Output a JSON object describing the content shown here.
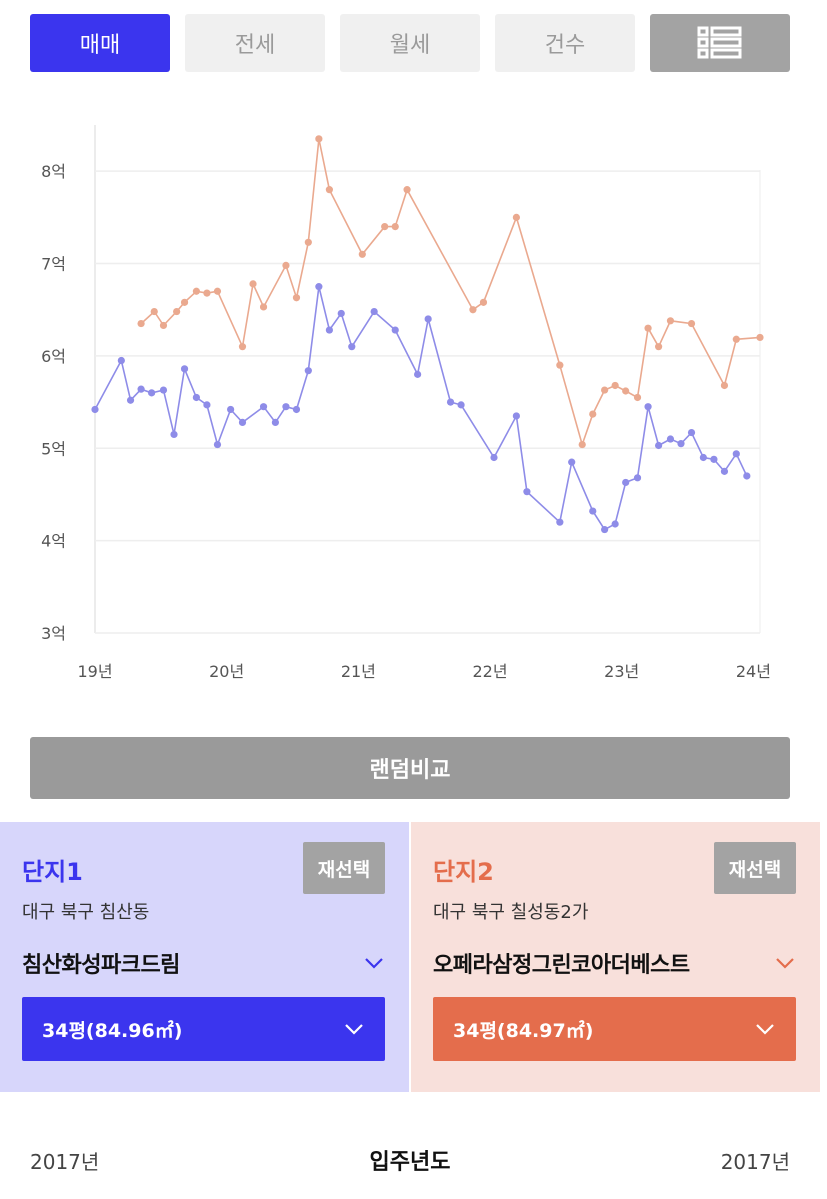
{
  "tabs": [
    {
      "label": "매매",
      "active": true
    },
    {
      "label": "전세",
      "active": false
    },
    {
      "label": "월세",
      "active": false
    },
    {
      "label": "건수",
      "active": false
    },
    {
      "icon": "list-icon"
    }
  ],
  "chart_data": {
    "type": "line",
    "y_tick_labels": [
      "3억",
      "4억",
      "5억",
      "6억",
      "7억",
      "8억"
    ],
    "y_ticks": [
      3,
      4,
      5,
      6,
      7,
      8
    ],
    "ylim": [
      3,
      8.5
    ],
    "x_tick_labels": [
      "19년",
      "20년",
      "21년",
      "22년",
      "23년",
      "24년"
    ],
    "x_ticks": [
      2019,
      2020,
      2021,
      2022,
      2023,
      2024
    ],
    "xlim": [
      2019,
      2024.05
    ],
    "grid": true,
    "series": [
      {
        "color": "#8e8ce8",
        "points": [
          [
            2019.0,
            5.42
          ],
          [
            2019.2,
            5.95
          ],
          [
            2019.27,
            5.52
          ],
          [
            2019.35,
            5.64
          ],
          [
            2019.43,
            5.6
          ],
          [
            2019.52,
            5.63
          ],
          [
            2019.6,
            5.15
          ],
          [
            2019.68,
            5.86
          ],
          [
            2019.77,
            5.55
          ],
          [
            2019.85,
            5.47
          ],
          [
            2019.93,
            5.04
          ],
          [
            2020.03,
            5.42
          ],
          [
            2020.12,
            5.28
          ],
          [
            2020.28,
            5.45
          ],
          [
            2020.37,
            5.28
          ],
          [
            2020.45,
            5.45
          ],
          [
            2020.53,
            5.42
          ],
          [
            2020.62,
            5.84
          ],
          [
            2020.7,
            6.75
          ],
          [
            2020.78,
            6.28
          ],
          [
            2020.87,
            6.46
          ],
          [
            2020.95,
            6.1
          ],
          [
            2021.12,
            6.48
          ],
          [
            2021.28,
            6.28
          ],
          [
            2021.45,
            5.8
          ],
          [
            2021.53,
            6.4
          ],
          [
            2021.7,
            5.5
          ],
          [
            2021.78,
            5.47
          ],
          [
            2022.03,
            4.9
          ],
          [
            2022.2,
            5.35
          ],
          [
            2022.28,
            4.53
          ],
          [
            2022.53,
            4.2
          ],
          [
            2022.62,
            4.85
          ],
          [
            2022.78,
            4.32
          ],
          [
            2022.87,
            4.12
          ],
          [
            2022.95,
            4.18
          ],
          [
            2023.03,
            4.63
          ],
          [
            2023.12,
            4.68
          ],
          [
            2023.2,
            5.45
          ],
          [
            2023.28,
            5.03
          ],
          [
            2023.37,
            5.1
          ],
          [
            2023.45,
            5.05
          ],
          [
            2023.53,
            5.17
          ],
          [
            2023.62,
            4.9
          ],
          [
            2023.7,
            4.88
          ],
          [
            2023.78,
            4.75
          ],
          [
            2023.87,
            4.94
          ],
          [
            2023.95,
            4.7
          ]
        ]
      },
      {
        "color": "#eaa98f",
        "points": [
          [
            2019.35,
            6.35
          ],
          [
            2019.45,
            6.48
          ],
          [
            2019.52,
            6.33
          ],
          [
            2019.62,
            6.48
          ],
          [
            2019.68,
            6.58
          ],
          [
            2019.77,
            6.7
          ],
          [
            2019.85,
            6.68
          ],
          [
            2019.93,
            6.7
          ],
          [
            2020.12,
            6.1
          ],
          [
            2020.2,
            6.78
          ],
          [
            2020.28,
            6.53
          ],
          [
            2020.45,
            6.98
          ],
          [
            2020.53,
            6.63
          ],
          [
            2020.62,
            7.23
          ],
          [
            2020.7,
            8.35
          ],
          [
            2020.78,
            7.8
          ],
          [
            2021.03,
            7.1
          ],
          [
            2021.2,
            7.4
          ],
          [
            2021.28,
            7.4
          ],
          [
            2021.37,
            7.8
          ],
          [
            2021.87,
            6.5
          ],
          [
            2021.95,
            6.58
          ],
          [
            2022.2,
            7.5
          ],
          [
            2022.53,
            5.9
          ],
          [
            2022.7,
            5.04
          ],
          [
            2022.78,
            5.37
          ],
          [
            2022.87,
            5.63
          ],
          [
            2022.95,
            5.68
          ],
          [
            2023.03,
            5.62
          ],
          [
            2023.12,
            5.55
          ],
          [
            2023.2,
            6.3
          ],
          [
            2023.28,
            6.1
          ],
          [
            2023.37,
            6.38
          ],
          [
            2023.53,
            6.35
          ],
          [
            2023.78,
            5.68
          ],
          [
            2023.87,
            6.18
          ],
          [
            2024.05,
            6.2
          ]
        ]
      }
    ]
  },
  "random_compare": {
    "label": "랜덤비교"
  },
  "complex1": {
    "title": "단지1",
    "reselect": "재선택",
    "region": "대구 북구 침산동",
    "name": "침산화성파크드림",
    "size": "34평(84.96㎡)",
    "color": "#3b35ee"
  },
  "complex2": {
    "title": "단지2",
    "reselect": "재선택",
    "region": "대구 북구 칠성동2가",
    "name": "오페라삼정그린코아더베스트",
    "size": "34평(84.97㎡)",
    "color": "#e46d4c"
  },
  "footer": {
    "left": "2017년",
    "center": "입주년도",
    "right": "2017년"
  }
}
